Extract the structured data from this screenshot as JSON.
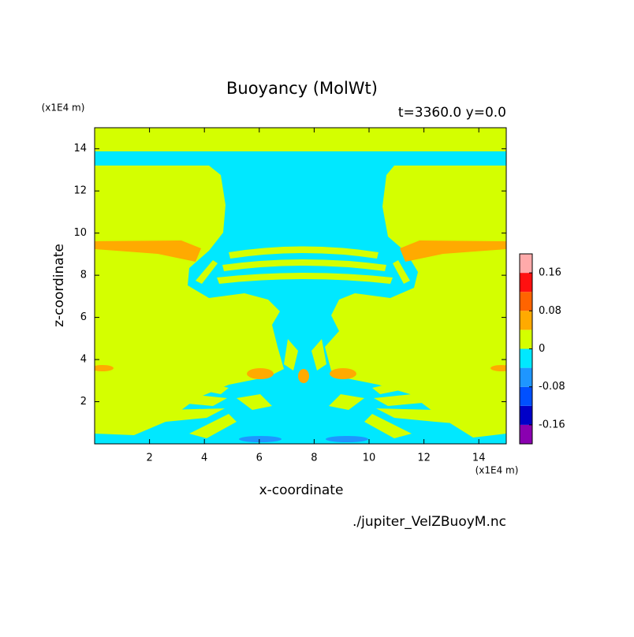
{
  "chart_data": {
    "type": "contour",
    "title": "Buoyancy (MolWt)",
    "subtitle": "t=3360.0 y=0.0",
    "x_label": "x-coordinate",
    "y_label": "z-coordinate",
    "x_unit": "(x1E4 m)",
    "y_unit": "(x1E4 m)",
    "source": "./jupiter_VelZBuoyM.nc",
    "xlim": [
      0,
      15
    ],
    "ylim": [
      0,
      15
    ],
    "xticks": [
      2,
      4,
      6,
      8,
      10,
      12,
      14
    ],
    "yticks": [
      2,
      4,
      6,
      8,
      10,
      12,
      14
    ],
    "levels": [
      -0.2,
      -0.16,
      -0.12,
      -0.08,
      -0.04,
      0,
      0.04,
      0.08,
      0.12,
      0.16,
      0.2
    ],
    "colors": [
      "#8a00b0",
      "#0000c8",
      "#0050ff",
      "#1e96ff",
      "#00e8ff",
      "#d4ff00",
      "#ffaa00",
      "#ff6400",
      "#ff1010",
      "#ffaaaa"
    ],
    "colorbar_ticks": [
      -0.16,
      -0.08,
      0,
      0.08,
      0.16
    ]
  }
}
